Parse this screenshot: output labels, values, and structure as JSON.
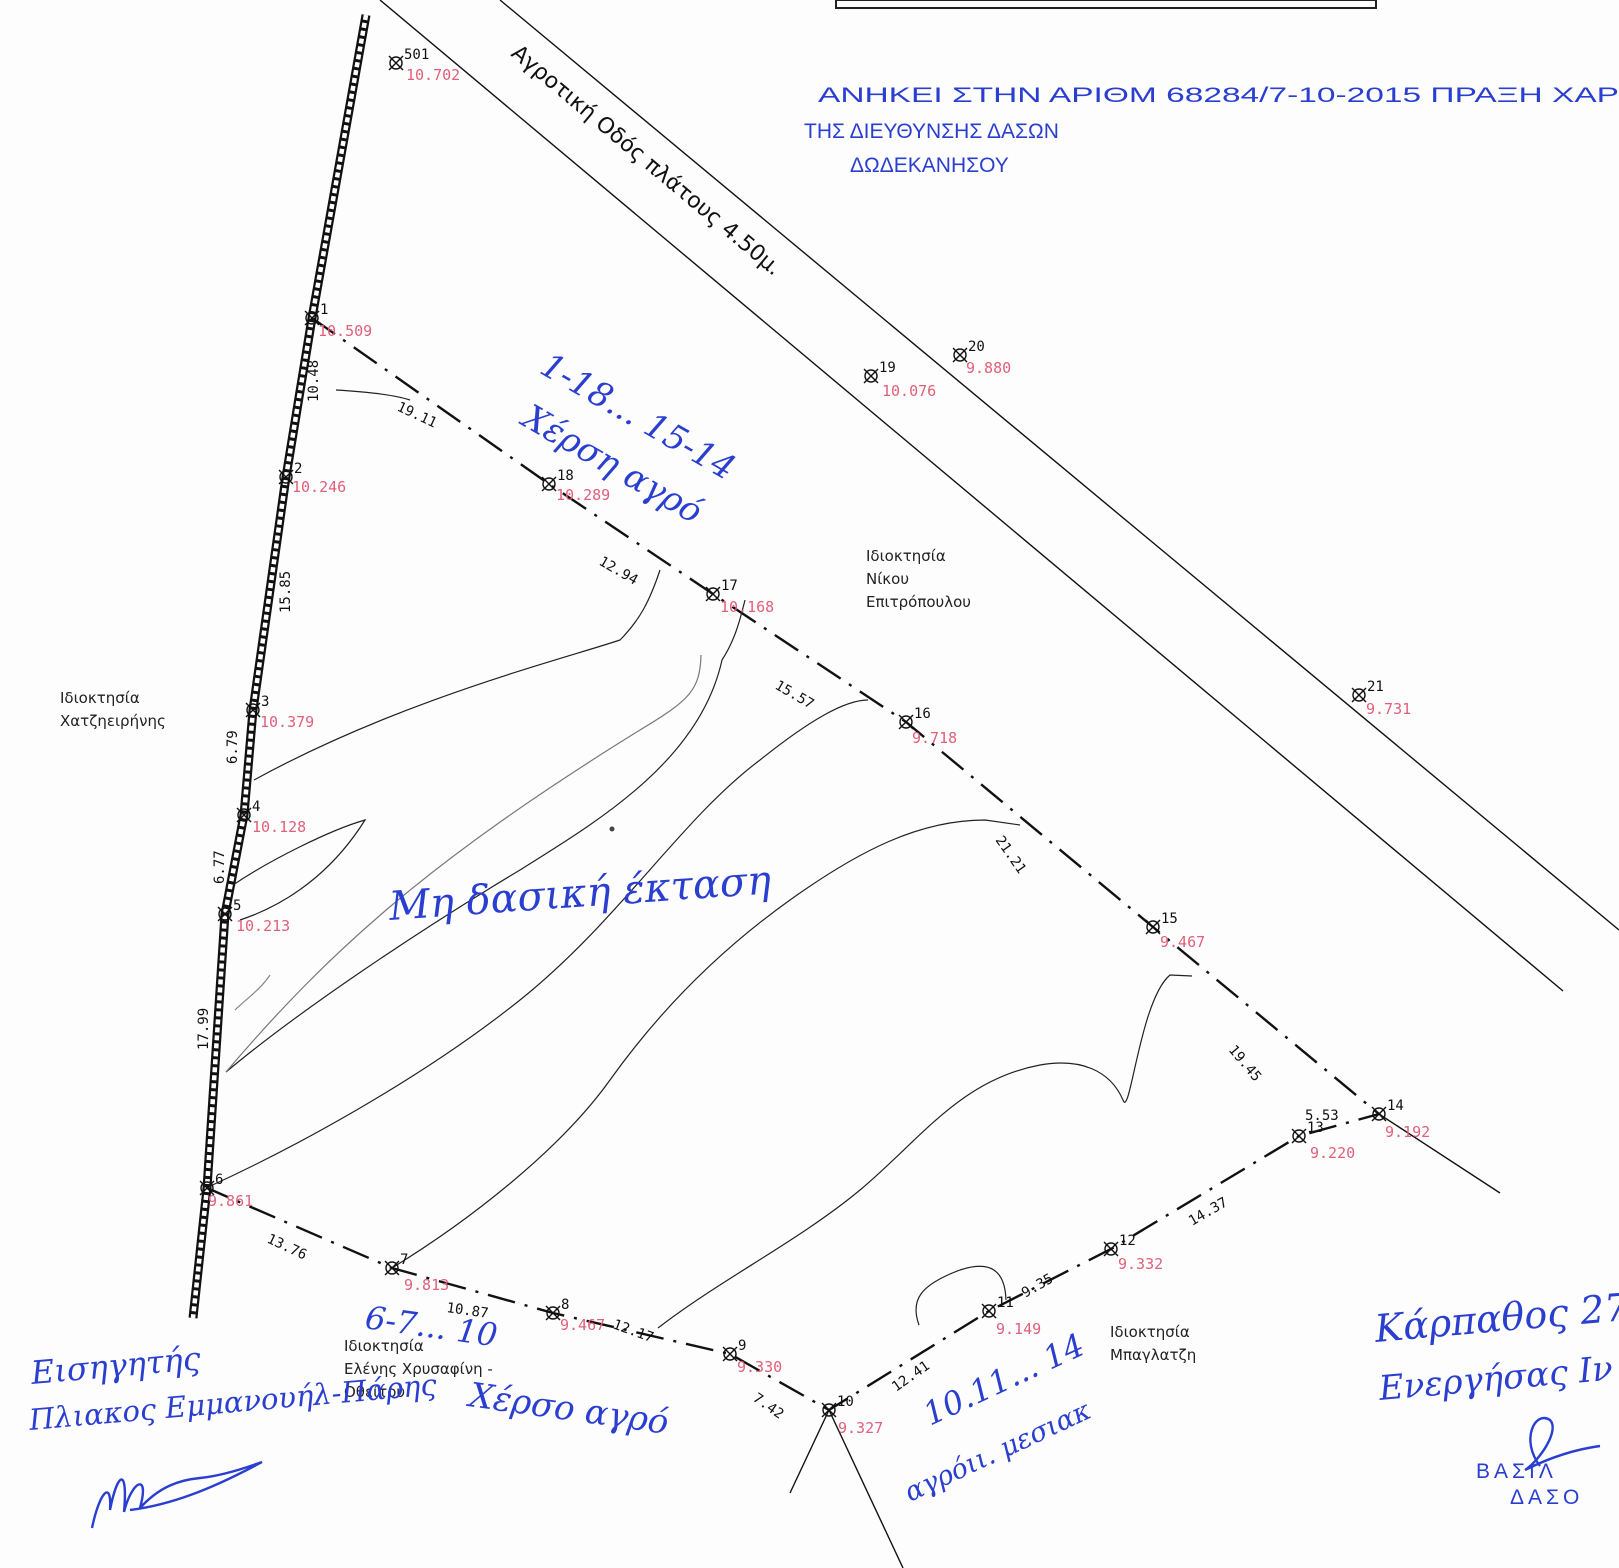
{
  "stamp": {
    "line1": "ΑΝΗΚΕΙ ΣΤΗΝ ΑΡΙΘΜ 68284/7-10-2015 ΠΡΑΞΗ ΧΑΡ",
    "line2": "ΤΗΣ ΔΙΕΥΘΥΝΣΗΣ ΔΑΣΩΝ",
    "line3": "ΔΩΔΕΚΑΝΗΣΟΥ"
  },
  "road_label": "Αγροτική Οδός πλάτους 4.50μ.",
  "points": [
    {
      "id": "501",
      "elev": "10.702"
    },
    {
      "id": "1",
      "elev": "10.509"
    },
    {
      "id": "2",
      "elev": "10.246"
    },
    {
      "id": "3",
      "elev": "10.379"
    },
    {
      "id": "4",
      "elev": "10.128"
    },
    {
      "id": "5",
      "elev": "10.213"
    },
    {
      "id": "6",
      "elev": "9.861"
    },
    {
      "id": "7",
      "elev": "9.813"
    },
    {
      "id": "8",
      "elev": "9.467"
    },
    {
      "id": "9",
      "elev": "9.330"
    },
    {
      "id": "10",
      "elev": "9.327"
    },
    {
      "id": "11",
      "elev": "9.149"
    },
    {
      "id": "12",
      "elev": "9.332"
    },
    {
      "id": "13",
      "elev": "9.220"
    },
    {
      "id": "14",
      "elev": "9.192"
    },
    {
      "id": "15",
      "elev": "9.467"
    },
    {
      "id": "16",
      "elev": "9.718"
    },
    {
      "id": "17",
      "elev": "10.168"
    },
    {
      "id": "18",
      "elev": "10.289"
    },
    {
      "id": "19",
      "elev": "10.076"
    },
    {
      "id": "20",
      "elev": "9.880"
    },
    {
      "id": "21",
      "elev": "9.731"
    }
  ],
  "distances": [
    "10.48",
    "15.85",
    "6.79",
    "6.77",
    "17.99",
    "19.11",
    "12.94",
    "15.57",
    "21.21",
    "19.45",
    "5.53",
    "14.37",
    "9.35",
    "12.41",
    "7.42",
    "12.17",
    "10.87",
    "13.76"
  ],
  "owners": {
    "east": [
      "Ιδιοκτησία",
      "Νίκου",
      "Επιτρόπουλου"
    ],
    "west": [
      "Ιδιοκτησία",
      "Χατζηειρήνης"
    ],
    "south": [
      "Ιδιοκτησία",
      "Ελένης Χρυσαφίνη -",
      "Οθείτου"
    ],
    "southeast": [
      "Ιδιοκτησία",
      "Μπαγλατζη"
    ]
  },
  "handwritten": {
    "note_1_18_a": "1-18... 15-14",
    "note_1_18_b": "Χέρση αγρό",
    "non_forest": "Μη δασική έκταση",
    "note_6_10_a": "6-7... 10",
    "note_6_10_b": "Χέρσο αγρό",
    "note_10_14_a": "10.11... 14",
    "note_10_14_b": "αγρόιι. μεσιακ",
    "reporter_title": "Εισηγητής",
    "reporter_name": "Πλιακος Εμμανουήλ-Πάρης",
    "place_date": "Κάρπαθος 27-",
    "role": "Ενεργήσας Ιν",
    "seal_name": "ΒΑΣΙΛ",
    "seal_sub": "ΔΑΣΟ"
  }
}
